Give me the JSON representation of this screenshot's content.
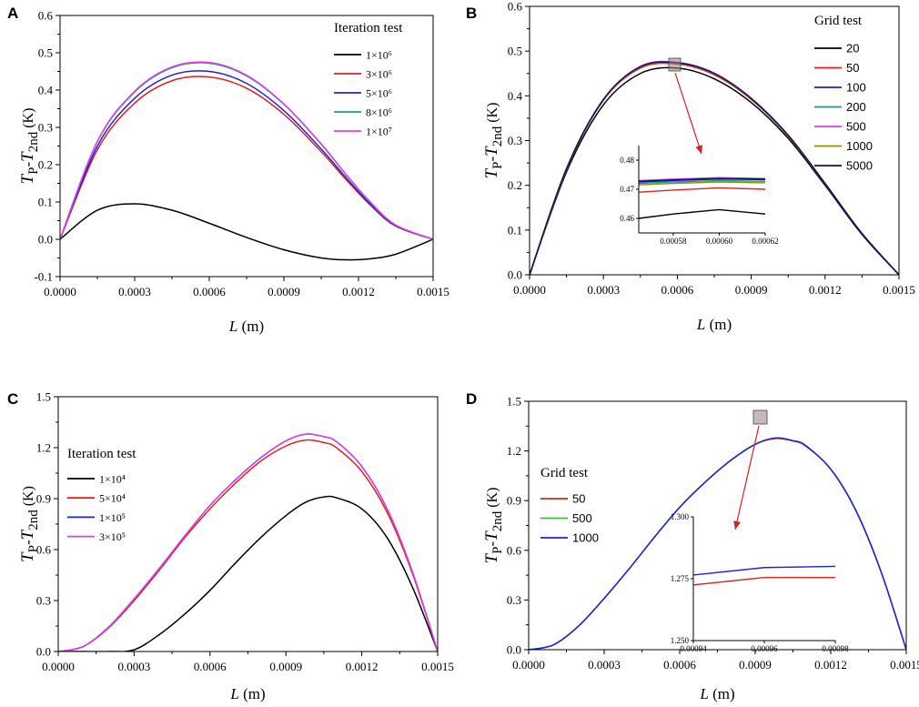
{
  "chart_data": [
    {
      "type": "line",
      "panel_label": "A",
      "xlabel": "L (m)",
      "ylabel": "TP-T2nd (K)",
      "xlim": [
        0,
        0.0015
      ],
      "ylim": [
        -0.1,
        0.6
      ],
      "xticks": [
        "0.0000",
        "0.0003",
        "0.0006",
        "0.0009",
        "0.0012",
        "0.0015"
      ],
      "yticks": [
        "-0.1",
        "0.0",
        "0.1",
        "0.2",
        "0.3",
        "0.4",
        "0.5",
        "0.6"
      ],
      "legend_title": "Iteration test",
      "legend_position": "top-right",
      "x": [
        0,
        0.00015,
        0.0003,
        0.00045,
        0.0006,
        0.00075,
        0.0009,
        0.00105,
        0.00115,
        0.00125,
        0.00135,
        0.0015
      ],
      "series": [
        {
          "name": "1×10⁶",
          "color": "#000000",
          "values": [
            0,
            0.078,
            0.095,
            0.078,
            0.043,
            0.005,
            -0.028,
            -0.05,
            -0.055,
            -0.052,
            -0.04,
            0
          ]
        },
        {
          "name": "3×10⁶",
          "color": "#e02020",
          "values": [
            0,
            0.24,
            0.365,
            0.425,
            0.435,
            0.405,
            0.335,
            0.235,
            0.16,
            0.09,
            0.035,
            0
          ]
        },
        {
          "name": "5×10⁶",
          "color": "#2020e0",
          "values": [
            0,
            0.25,
            0.378,
            0.44,
            0.45,
            0.418,
            0.345,
            0.242,
            0.165,
            0.093,
            0.036,
            0
          ]
        },
        {
          "name": "8×10⁶",
          "color": "#159a9a",
          "values": [
            0,
            0.262,
            0.395,
            0.46,
            0.472,
            0.438,
            0.362,
            0.255,
            0.173,
            0.098,
            0.038,
            0
          ]
        },
        {
          "name": "1×10⁷",
          "color": "#e040e0",
          "values": [
            0,
            0.263,
            0.397,
            0.462,
            0.474,
            0.44,
            0.363,
            0.256,
            0.174,
            0.098,
            0.038,
            0
          ]
        }
      ]
    },
    {
      "type": "line",
      "panel_label": "B",
      "xlabel": "L (m)",
      "ylabel": "TP-T2nd (K)",
      "xlim": [
        0,
        0.0015
      ],
      "ylim": [
        0,
        0.6
      ],
      "xticks": [
        "0.0000",
        "0.0003",
        "0.0006",
        "0.0009",
        "0.0012",
        "0.0015"
      ],
      "yticks": [
        "0.0",
        "0.1",
        "0.2",
        "0.3",
        "0.4",
        "0.5",
        "0.6"
      ],
      "legend_title": "Grid test",
      "legend_position": "top-right",
      "x": [
        0,
        0.00015,
        0.0003,
        0.00045,
        0.0006,
        0.00075,
        0.0009,
        0.00105,
        0.0012,
        0.00135,
        0.0015
      ],
      "series": [
        {
          "name": "20",
          "color": "#000000",
          "values": [
            0,
            0.23,
            0.38,
            0.45,
            0.462,
            0.438,
            0.385,
            0.305,
            0.2,
            0.09,
            0
          ]
        },
        {
          "name": "50",
          "color": "#e02020",
          "values": [
            0,
            0.235,
            0.39,
            0.462,
            0.471,
            0.447,
            0.392,
            0.31,
            0.203,
            0.092,
            0
          ]
        },
        {
          "name": "100",
          "color": "#2020e0",
          "values": [
            0,
            0.237,
            0.392,
            0.465,
            0.474,
            0.45,
            0.394,
            0.312,
            0.204,
            0.092,
            0
          ]
        },
        {
          "name": "200",
          "color": "#159a9a",
          "values": [
            0,
            0.236,
            0.391,
            0.464,
            0.473,
            0.449,
            0.393,
            0.311,
            0.204,
            0.092,
            0
          ]
        },
        {
          "name": "500",
          "color": "#d040e0",
          "values": [
            0,
            0.237,
            0.392,
            0.466,
            0.475,
            0.451,
            0.395,
            0.312,
            0.204,
            0.092,
            0
          ]
        },
        {
          "name": "1000",
          "color": "#909000",
          "values": [
            0,
            0.236,
            0.391,
            0.464,
            0.473,
            0.449,
            0.393,
            0.311,
            0.204,
            0.092,
            0
          ]
        },
        {
          "name": "5000",
          "color": "#10105a",
          "values": [
            0,
            0.237,
            0.392,
            0.465,
            0.474,
            0.45,
            0.394,
            0.312,
            0.204,
            0.092,
            0
          ]
        }
      ],
      "inset": {
        "xlim": [
          0.000565,
          0.00062
        ],
        "ylim": [
          0.455,
          0.485
        ],
        "xticks": [
          "0.00058",
          "0.00060",
          "0.00062"
        ],
        "yticks": [
          "0.46",
          "0.47",
          "0.48"
        ],
        "x": [
          0.000565,
          0.00058,
          0.0006,
          0.00062
        ],
        "series": [
          {
            "name": "20",
            "color": "#000000",
            "values": [
              0.46,
              0.4615,
              0.463,
              0.4615
            ]
          },
          {
            "name": "50",
            "color": "#e02020",
            "values": [
              0.469,
              0.4697,
              0.4705,
              0.47
            ]
          },
          {
            "name": "1000",
            "color": "#909000",
            "values": [
              0.4715,
              0.472,
              0.4725,
              0.4722
            ]
          },
          {
            "name": "200",
            "color": "#159a9a",
            "values": [
              0.472,
              0.4725,
              0.473,
              0.4727
            ]
          },
          {
            "name": "100",
            "color": "#2020e0",
            "values": [
              0.4725,
              0.473,
              0.4735,
              0.4733
            ]
          },
          {
            "name": "500",
            "color": "#d040e0",
            "values": [
              0.473,
              0.4735,
              0.474,
              0.4737
            ]
          },
          {
            "name": "5000",
            "color": "#10105a",
            "values": [
              0.4727,
              0.4732,
              0.4737,
              0.4735
            ]
          }
        ]
      }
    },
    {
      "type": "line",
      "panel_label": "C",
      "xlabel": "L (m)",
      "ylabel": "TP-T2nd (K)",
      "xlim": [
        0,
        0.0015
      ],
      "ylim": [
        0,
        1.5
      ],
      "xticks": [
        "0.0000",
        "0.0003",
        "0.0006",
        "0.0009",
        "0.0012",
        "0.0015"
      ],
      "yticks": [
        "0.0",
        "0.3",
        "0.6",
        "0.9",
        "1.2",
        "1.5"
      ],
      "legend_title": "Iteration test",
      "legend_position": "top-left",
      "x": [
        0,
        0.0001,
        0.0002,
        0.0003,
        0.0004,
        0.0005,
        0.0006,
        0.0007,
        0.0008,
        0.0009,
        0.00098,
        0.00105,
        0.0011,
        0.0012,
        0.0013,
        0.0014,
        0.0015
      ],
      "series": [
        {
          "name": "1×10⁴",
          "color": "#000000",
          "values": [
            0,
            0,
            0,
            0.01,
            0.1,
            0.22,
            0.36,
            0.52,
            0.67,
            0.8,
            0.88,
            0.91,
            0.905,
            0.84,
            0.67,
            0.38,
            0
          ]
        },
        {
          "name": "5×10⁴",
          "color": "#e02020",
          "values": [
            0,
            0.03,
            0.14,
            0.3,
            0.48,
            0.67,
            0.84,
            0.99,
            1.12,
            1.21,
            1.245,
            1.23,
            1.2,
            1.06,
            0.82,
            0.46,
            0
          ]
        },
        {
          "name": "1×10⁵",
          "color": "#2020e0",
          "values": [
            0,
            0.03,
            0.145,
            0.31,
            0.49,
            0.68,
            0.86,
            1.01,
            1.14,
            1.24,
            1.28,
            1.265,
            1.235,
            1.09,
            0.84,
            0.47,
            0
          ]
        },
        {
          "name": "3×10⁵",
          "color": "#e040e0",
          "values": [
            0,
            0.03,
            0.145,
            0.31,
            0.49,
            0.68,
            0.86,
            1.01,
            1.14,
            1.24,
            1.28,
            1.265,
            1.235,
            1.09,
            0.84,
            0.47,
            0
          ]
        }
      ]
    },
    {
      "type": "line",
      "panel_label": "D",
      "xlabel": "L (m)",
      "ylabel": "TP-T2nd (K)",
      "xlim": [
        0,
        0.0015
      ],
      "ylim": [
        0,
        1.5
      ],
      "xticks": [
        "0.0000",
        "0.0003",
        "0.0006",
        "0.0009",
        "0.0012",
        "0.0015"
      ],
      "yticks": [
        "0.0",
        "0.3",
        "0.6",
        "0.9",
        "1.2",
        "1.5"
      ],
      "legend_title": "Grid test",
      "legend_position": "top-left",
      "x": [
        0,
        0.0001,
        0.0002,
        0.0003,
        0.0004,
        0.0005,
        0.0006,
        0.0007,
        0.0008,
        0.0009,
        0.00098,
        0.00105,
        0.0011,
        0.0012,
        0.0013,
        0.0014,
        0.0015
      ],
      "series": [
        {
          "name": "50",
          "color": "#e02020",
          "values": [
            0,
            0.03,
            0.145,
            0.31,
            0.49,
            0.68,
            0.86,
            1.01,
            1.14,
            1.24,
            1.275,
            1.26,
            1.23,
            1.09,
            0.84,
            0.47,
            0
          ]
        },
        {
          "name": "500",
          "color": "#20d020",
          "values": [
            0,
            0.03,
            0.145,
            0.31,
            0.49,
            0.68,
            0.86,
            1.01,
            1.14,
            1.24,
            1.278,
            1.262,
            1.233,
            1.09,
            0.84,
            0.47,
            0
          ]
        },
        {
          "name": "1000",
          "color": "#2020e0",
          "values": [
            0,
            0.03,
            0.145,
            0.31,
            0.49,
            0.68,
            0.86,
            1.01,
            1.14,
            1.24,
            1.278,
            1.262,
            1.233,
            1.09,
            0.84,
            0.47,
            0
          ]
        }
      ],
      "inset": {
        "xlim": [
          0.00094,
          0.00098
        ],
        "ylim": [
          1.25,
          1.3
        ],
        "xticks": [
          "0.00094",
          "0.00096",
          "0.00098"
        ],
        "yticks": [
          "1.250",
          "1.275",
          "1.300"
        ],
        "x": [
          0.00094,
          0.00096,
          0.00098
        ],
        "series": [
          {
            "name": "50",
            "color": "#e02020",
            "values": [
              1.2725,
              1.2755,
              1.2755
            ]
          },
          {
            "name": "1000",
            "color": "#2020e0",
            "values": [
              1.2765,
              1.2795,
              1.28
            ]
          }
        ]
      }
    }
  ]
}
